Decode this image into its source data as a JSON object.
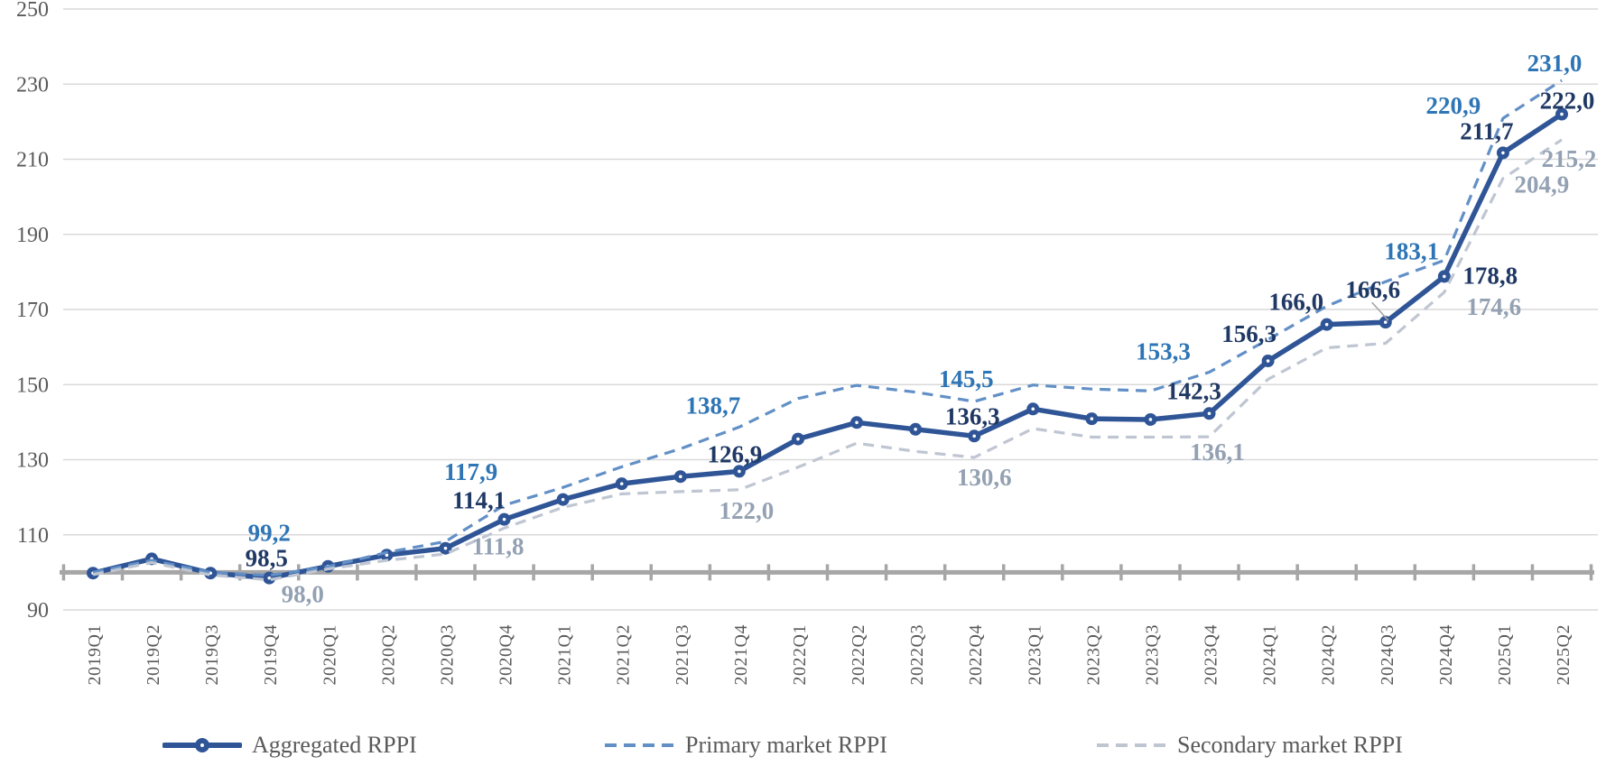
{
  "chart_data": {
    "type": "line",
    "title": "",
    "x_categories": [
      "2019Q1",
      "2019Q2",
      "2019Q3",
      "2019Q4",
      "2020Q1",
      "2020Q2",
      "2020Q3",
      "2020Q4",
      "2021Q1",
      "2021Q2",
      "2021Q3",
      "2021Q4",
      "2022Q1",
      "2022Q2",
      "2022Q3",
      "2022Q4",
      "2023Q1",
      "2023Q2",
      "2023Q3",
      "2023Q4",
      "2024Q1",
      "2024Q2",
      "2024Q3",
      "2024Q4",
      "2025Q1",
      "2025Q2"
    ],
    "ylim": [
      90,
      250
    ],
    "yticks": [
      250,
      230,
      210,
      190,
      170,
      150,
      130,
      110,
      90
    ],
    "baseline_value": 100,
    "grid": true,
    "legend_position": "bottom",
    "decimal_separator": ",",
    "series": [
      {
        "name": "Aggregated RPPI",
        "line_style": "solid",
        "marker": true,
        "color": "#2F5597",
        "label_color": "#1F3864",
        "values": [
          99.8,
          103.6,
          99.8,
          98.5,
          101.6,
          104.6,
          106.4,
          114.1,
          119.4,
          123.6,
          125.5,
          126.9,
          135.5,
          139.9,
          138.1,
          136.3,
          143.5,
          140.9,
          140.7,
          142.3,
          156.3,
          166.0,
          166.6,
          178.8,
          211.7,
          222.0
        ],
        "labels": [
          {
            "i": 3,
            "text": "98,5",
            "dx": -3,
            "dy": -22
          },
          {
            "i": 7,
            "text": "114,1",
            "dx": -28,
            "dy": -21
          },
          {
            "i": 11,
            "text": "126,9",
            "dx": -5,
            "dy": -19
          },
          {
            "i": 15,
            "text": "136,3",
            "dx": -2,
            "dy": -22
          },
          {
            "i": 19,
            "text": "142,3",
            "dx": -17,
            "dy": -25
          },
          {
            "i": 20,
            "text": "156,3",
            "dx": -21,
            "dy": -30
          },
          {
            "i": 21,
            "text": "166,0",
            "dx": -34,
            "dy": -25
          },
          {
            "i": 22,
            "text": "166,6",
            "dx": -14,
            "dy": -36
          },
          {
            "i": 23,
            "text": "178,8",
            "dx": 51,
            "dy": -1
          },
          {
            "i": 24,
            "text": "211,7",
            "dx": -18,
            "dy": -24
          },
          {
            "i": 25,
            "text": "222,0",
            "dx": 6,
            "dy": -15
          }
        ]
      },
      {
        "name": "Primary market RPPI",
        "line_style": "dashed",
        "marker": false,
        "color": "#6290C6",
        "label_color": "#2E75B6",
        "values": [
          100.0,
          103.2,
          100.0,
          99.2,
          101.5,
          105.3,
          108.2,
          117.9,
          122.6,
          128.1,
          132.9,
          138.7,
          146.3,
          149.8,
          148.0,
          145.5,
          149.9,
          148.8,
          148.3,
          153.3,
          162.0,
          170.9,
          177.4,
          183.1,
          220.9,
          231.0
        ],
        "labels": [
          {
            "i": 3,
            "text": "99,2",
            "dx": 0,
            "dy": -47
          },
          {
            "i": 7,
            "text": "117,9",
            "dx": -37,
            "dy": -37
          },
          {
            "i": 11,
            "text": "138,7",
            "dx": -29,
            "dy": -24
          },
          {
            "i": 15,
            "text": "145,5",
            "dx": -9,
            "dy": -25
          },
          {
            "i": 19,
            "text": "153,3",
            "dx": -51,
            "dy": -23
          },
          {
            "i": 23,
            "text": "183,1",
            "dx": -36,
            "dy": -10
          },
          {
            "i": 24,
            "text": "220,9",
            "dx": -55,
            "dy": -14
          },
          {
            "i": 25,
            "text": "231,0",
            "dx": -8,
            "dy": -19
          }
        ]
      },
      {
        "name": "Secondary market RPPI",
        "line_style": "dashed",
        "marker": false,
        "color": "#BFC6D2",
        "label_color": "#93A1B3",
        "values": [
          99.4,
          102.6,
          99.3,
          98.0,
          100.9,
          103.2,
          104.9,
          111.8,
          117.3,
          120.9,
          121.5,
          122.0,
          128.0,
          134.4,
          132.2,
          130.6,
          138.3,
          136.0,
          136.0,
          136.1,
          151.4,
          159.8,
          161.0,
          174.6,
          204.9,
          215.2
        ],
        "labels": [
          {
            "i": 3,
            "text": "98,0",
            "dx": 37,
            "dy": 16
          },
          {
            "i": 7,
            "text": "111,8",
            "dx": -7,
            "dy": 20
          },
          {
            "i": 11,
            "text": "122,0",
            "dx": 8,
            "dy": 23
          },
          {
            "i": 15,
            "text": "130,6",
            "dx": 11,
            "dy": 22
          },
          {
            "i": 19,
            "text": "136,1",
            "dx": 9,
            "dy": 17
          },
          {
            "i": 23,
            "text": "174,6",
            "dx": 55,
            "dy": 16
          },
          {
            "i": 24,
            "text": "204,9",
            "dx": 43,
            "dy": 7
          },
          {
            "i": 25,
            "text": "215,2",
            "dx": 8,
            "dy": 21
          }
        ]
      }
    ],
    "annotations": {
      "leader_line_label": "166,6",
      "leader_line_target": "2024Q3"
    }
  },
  "colors": {
    "grid": "#D9D9D9",
    "baseline": "#A6A6A6",
    "axis_text": "#595959",
    "background": "#FFFFFF"
  }
}
